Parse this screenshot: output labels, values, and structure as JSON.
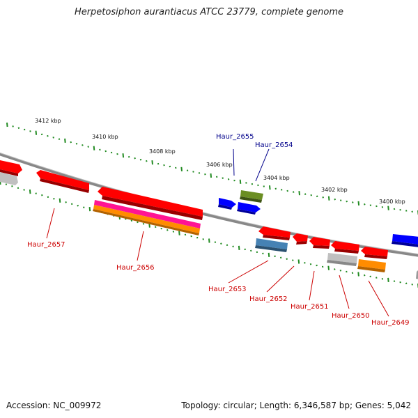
{
  "title": "Herpetosiphon aurantiacus ATCC 23779, complete genome",
  "footer": {
    "accession": "Accession: NC_009972",
    "topology": "Topology: circular; Length: 6,346,587 bp; Genes: 5,042"
  },
  "colors": {
    "tick": "#228b22",
    "backbone": "#888888",
    "forward_label": "#00008b",
    "reverse_label": "#cc0000",
    "gene_red": "#ff0000",
    "gene_blue": "#0000ff",
    "gene_olive": "#6b8e23",
    "gene_pink": "#ff1493",
    "gene_orange": "#ff8c00",
    "gene_steelblue": "#4682b4",
    "gene_gray": "#c0c0c0"
  },
  "scale_labels": [
    "3412 kbp",
    "3410 kbp",
    "3408 kbp",
    "3406 kbp",
    "3404 kbp",
    "3402 kbp",
    "3400 kbp"
  ],
  "gene_labels": [
    {
      "text": "Haur_2655",
      "strand": "forward"
    },
    {
      "text": "Haur_2654",
      "strand": "forward"
    },
    {
      "text": "Haur_2657",
      "strand": "reverse"
    },
    {
      "text": "Haur_2656",
      "strand": "reverse"
    },
    {
      "text": "Haur_2653",
      "strand": "reverse"
    },
    {
      "text": "Haur_2652",
      "strand": "reverse"
    },
    {
      "text": "Haur_2651",
      "strand": "reverse"
    },
    {
      "text": "Haur_2650",
      "strand": "reverse"
    },
    {
      "text": "Haur_2649",
      "strand": "reverse"
    }
  ]
}
